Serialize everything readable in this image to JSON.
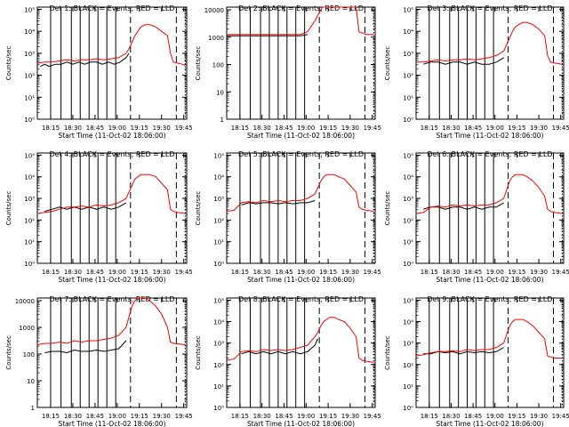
{
  "chart_data": {
    "type": "line",
    "xlabel_template": "Start Time (11-Oct-02 18:06:00)",
    "ylabel": "Counts/sec",
    "x_ticks": [
      "18:15",
      "18:30",
      "18:45",
      "19:00",
      "19:15",
      "19:30",
      "19:45"
    ],
    "x_range_minutes": [
      "18:06",
      "19:47"
    ],
    "scale": "log",
    "legend": "BLACK = Events, RED = LLD",
    "colors": {
      "events": "#000000",
      "lld": "#ff0000",
      "axis": "#000000"
    },
    "panels": [
      {
        "title": "Det 1: BLACK = Events, RED = LLD",
        "y_ticks": [
          "10⁰",
          "10¹",
          "10²",
          "10³",
          "10⁴",
          "10⁵"
        ],
        "ylim_exp": [
          0,
          5.1
        ],
        "series": [
          {
            "name": "Events",
            "color": "#000000",
            "x_minutes": [
              2,
              5,
              8,
              12,
              16,
              20,
              24,
              28,
              32,
              36,
              40,
              44,
              48,
              52,
              56,
              60,
              62
            ],
            "y_log10": [
              2.4,
              2.5,
              2.4,
              2.5,
              2.5,
              2.6,
              2.5,
              2.6,
              2.5,
              2.6,
              2.6,
              2.5,
              2.6,
              2.5,
              2.6,
              2.8,
              3.0
            ]
          },
          {
            "name": "LLD",
            "color": "#ff0000",
            "x_minutes": [
              0,
              5,
              10,
              15,
              20,
              25,
              30,
              35,
              40,
              45,
              50,
              55,
              60,
              62,
              64,
              66,
              68,
              70,
              73,
              76,
              80,
              84,
              88,
              90,
              92,
              95,
              98,
              100
            ],
            "y_log10": [
              2.55,
              2.6,
              2.6,
              2.65,
              2.7,
              2.65,
              2.7,
              2.7,
              2.75,
              2.7,
              2.75,
              2.8,
              3.0,
              3.2,
              3.5,
              3.8,
              4.0,
              4.2,
              4.3,
              4.3,
              4.2,
              4.0,
              3.8,
              3.0,
              2.6,
              2.55,
              2.5,
              2.45
            ]
          }
        ]
      },
      {
        "title": "Det 2: BLACK = Events, RED = LLD",
        "y_ticks": [
          "1",
          "10",
          "100",
          "1000",
          "10000"
        ],
        "ylim_exp": [
          0,
          4.1
        ],
        "series": [
          {
            "name": "Events",
            "color": "#000000",
            "x_minutes": [
              0,
              10,
              20,
              30,
              40,
              50,
              55
            ],
            "y_log10": [
              3.05,
              3.05,
              3.05,
              3.05,
              3.05,
              3.05,
              3.1
            ]
          },
          {
            "name": "LLD",
            "color": "#ff0000",
            "x_minutes": [
              0,
              10,
              20,
              30,
              40,
              50,
              55,
              60,
              65,
              70,
              80,
              88,
              90,
              95,
              100
            ],
            "y_log10": [
              3.1,
              3.1,
              3.1,
              3.1,
              3.1,
              3.1,
              3.2,
              3.6,
              4.1,
              4.1,
              4.1,
              4.1,
              3.2,
              3.1,
              3.1
            ]
          }
        ]
      },
      {
        "title": "Det 3: BLACK = Events, RED = LLD",
        "y_ticks": [
          "10⁰",
          "10¹",
          "10²",
          "10³",
          "10⁴",
          "10⁵"
        ],
        "ylim_exp": [
          0,
          5.1
        ],
        "series": [
          {
            "name": "Events",
            "color": "#000000",
            "x_minutes": [
              5,
              10,
              15,
              20,
              25,
              30,
              35,
              40,
              45,
              50,
              55,
              60
            ],
            "y_log10": [
              2.5,
              2.6,
              2.6,
              2.5,
              2.6,
              2.6,
              2.5,
              2.6,
              2.5,
              2.5,
              2.6,
              2.8
            ]
          },
          {
            "name": "LLD",
            "color": "#ff0000",
            "x_minutes": [
              0,
              5,
              10,
              15,
              20,
              25,
              30,
              35,
              40,
              45,
              50,
              55,
              60,
              62,
              64,
              66,
              68,
              70,
              73,
              76,
              80,
              84,
              88,
              90,
              92,
              95,
              100
            ],
            "y_log10": [
              2.6,
              2.6,
              2.65,
              2.7,
              2.65,
              2.7,
              2.7,
              2.75,
              2.7,
              2.75,
              2.8,
              2.9,
              3.1,
              3.4,
              3.7,
              4.0,
              4.2,
              4.3,
              4.4,
              4.4,
              4.3,
              4.1,
              3.8,
              2.9,
              2.6,
              2.55,
              2.5
            ]
          }
        ]
      },
      {
        "title": "Det 4: BLACK = Events, RED = LLD",
        "y_ticks": [
          "10⁰",
          "10¹",
          "10²",
          "10³",
          "10⁴",
          "10⁵"
        ],
        "ylim_exp": [
          0,
          5.1
        ],
        "series": [
          {
            "name": "Events",
            "color": "#000000",
            "x_minutes": [
              5,
              10,
              15,
              20,
              25,
              30,
              35,
              40,
              45,
              50,
              55,
              60
            ],
            "y_log10": [
              2.4,
              2.5,
              2.6,
              2.5,
              2.6,
              2.5,
              2.6,
              2.5,
              2.6,
              2.5,
              2.6,
              2.8
            ]
          },
          {
            "name": "LLD",
            "color": "#ff0000",
            "x_minutes": [
              0,
              5,
              10,
              15,
              20,
              25,
              30,
              35,
              40,
              45,
              50,
              55,
              60,
              62,
              64,
              66,
              68,
              70,
              73,
              76,
              80,
              84,
              88,
              90,
              92,
              95,
              100
            ],
            "y_log10": [
              2.3,
              2.35,
              2.4,
              2.5,
              2.6,
              2.6,
              2.65,
              2.6,
              2.7,
              2.65,
              2.7,
              2.8,
              3.0,
              3.3,
              3.6,
              3.9,
              4.0,
              4.1,
              4.1,
              4.1,
              4.0,
              3.7,
              3.4,
              2.5,
              2.4,
              2.35,
              2.3
            ]
          }
        ]
      },
      {
        "title": "Det 5: BLACK = Events, RED = LLD",
        "y_ticks": [
          "10⁰",
          "10¹",
          "10²",
          "10³",
          "10⁴",
          "10⁵"
        ],
        "ylim_exp": [
          0,
          5.1
        ],
        "series": [
          {
            "name": "Events",
            "color": "#000000",
            "x_minutes": [
              10,
              15,
              20,
              25,
              30,
              35,
              40,
              45,
              50,
              55,
              60
            ],
            "y_log10": [
              2.7,
              2.8,
              2.75,
              2.8,
              2.8,
              2.75,
              2.8,
              2.75,
              2.8,
              2.8,
              2.9
            ]
          },
          {
            "name": "LLD",
            "color": "#ff0000",
            "x_minutes": [
              0,
              5,
              10,
              15,
              20,
              25,
              30,
              35,
              40,
              45,
              50,
              55,
              60,
              62,
              64,
              66,
              68,
              70,
              73,
              76,
              80,
              84,
              88,
              90,
              92,
              95,
              100
            ],
            "y_log10": [
              2.4,
              2.45,
              2.8,
              2.85,
              2.8,
              2.9,
              2.85,
              2.9,
              2.85,
              2.9,
              2.9,
              3.0,
              3.2,
              3.5,
              3.8,
              4.0,
              4.1,
              4.1,
              4.1,
              4.0,
              3.9,
              3.6,
              3.3,
              2.6,
              2.5,
              2.45,
              2.4
            ]
          }
        ]
      },
      {
        "title": "Det 6: BLACK = Events, RED = LLD",
        "y_ticks": [
          "10⁰",
          "10¹",
          "10²",
          "10³",
          "10⁴",
          "10⁵"
        ],
        "ylim_exp": [
          0,
          5.1
        ],
        "series": [
          {
            "name": "Events",
            "color": "#000000",
            "x_minutes": [
              5,
              10,
              15,
              20,
              25,
              30,
              35,
              40,
              45,
              50,
              55,
              60
            ],
            "y_log10": [
              2.5,
              2.6,
              2.6,
              2.5,
              2.6,
              2.6,
              2.5,
              2.6,
              2.5,
              2.6,
              2.6,
              2.8
            ]
          },
          {
            "name": "LLD",
            "color": "#ff0000",
            "x_minutes": [
              0,
              5,
              10,
              15,
              20,
              25,
              30,
              35,
              40,
              45,
              50,
              55,
              60,
              62,
              64,
              66,
              68,
              70,
              73,
              76,
              80,
              84,
              88,
              90,
              92,
              95,
              100
            ],
            "y_log10": [
              2.3,
              2.35,
              2.6,
              2.65,
              2.6,
              2.7,
              2.65,
              2.7,
              2.65,
              2.7,
              2.7,
              2.8,
              3.0,
              3.4,
              3.8,
              4.0,
              4.1,
              4.1,
              4.1,
              4.0,
              3.8,
              3.5,
              3.1,
              2.5,
              2.4,
              2.35,
              2.3
            ]
          }
        ]
      },
      {
        "title": "Det 7: BLACK = Events, RED = LLD",
        "y_ticks": [
          "1",
          "10",
          "100",
          "1000",
          "10000"
        ],
        "ylim_exp": [
          0,
          4.1
        ],
        "series": [
          {
            "name": "Events",
            "color": "#000000",
            "x_minutes": [
              5,
              10,
              15,
              20,
              25,
              30,
              35,
              40,
              45,
              50,
              55,
              60
            ],
            "y_log10": [
              2.05,
              2.1,
              2.1,
              2.05,
              2.15,
              2.1,
              2.1,
              2.15,
              2.1,
              2.15,
              2.2,
              2.5
            ]
          },
          {
            "name": "LLD",
            "color": "#ff0000",
            "x_minutes": [
              0,
              5,
              10,
              15,
              20,
              25,
              30,
              35,
              40,
              45,
              50,
              55,
              60,
              62,
              64,
              66,
              68,
              70,
              73,
              76,
              80,
              84,
              88,
              90,
              92,
              95,
              100
            ],
            "y_log10": [
              2.35,
              2.4,
              2.4,
              2.45,
              2.4,
              2.5,
              2.45,
              2.5,
              2.5,
              2.55,
              2.6,
              2.7,
              3.0,
              3.4,
              3.8,
              4.0,
              4.1,
              4.1,
              4.1,
              4.0,
              3.8,
              3.5,
              3.0,
              2.45,
              2.4,
              2.38,
              2.35
            ]
          }
        ]
      },
      {
        "title": "Det 8: BLACK = Events, RED = LLD",
        "y_ticks": [
          "10⁰",
          "10¹",
          "10²",
          "10³",
          "10⁴",
          "10⁵"
        ],
        "ylim_exp": [
          0,
          5.1
        ],
        "series": [
          {
            "name": "Events",
            "color": "#000000",
            "x_minutes": [
              10,
              15,
              20,
              25,
              30,
              35,
              40,
              45,
              50,
              55,
              60,
              62
            ],
            "y_log10": [
              2.5,
              2.6,
              2.5,
              2.6,
              2.5,
              2.6,
              2.5,
              2.6,
              2.5,
              2.6,
              2.9,
              3.2
            ]
          },
          {
            "name": "LLD",
            "color": "#ff0000",
            "x_minutes": [
              0,
              5,
              10,
              15,
              20,
              25,
              30,
              35,
              40,
              45,
              50,
              55,
              60,
              62,
              64,
              66,
              68,
              70,
              73,
              76,
              80,
              84,
              88,
              90,
              92,
              95,
              100
            ],
            "y_log10": [
              2.2,
              2.25,
              2.6,
              2.65,
              2.6,
              2.7,
              2.65,
              2.7,
              2.65,
              2.7,
              2.8,
              2.9,
              3.3,
              3.5,
              3.8,
              4.0,
              4.1,
              4.2,
              4.2,
              4.1,
              4.0,
              3.7,
              3.3,
              2.3,
              2.2,
              2.15,
              2.1
            ]
          }
        ]
      },
      {
        "title": "Det 9: BLACK = Events, RED = LLD",
        "y_ticks": [
          "10⁰",
          "10¹",
          "10²",
          "10³",
          "10⁴",
          "10⁵"
        ],
        "ylim_exp": [
          0,
          5.1
        ],
        "series": [
          {
            "name": "Events",
            "color": "#000000",
            "x_minutes": [
              5,
              10,
              15,
              20,
              25,
              30,
              35,
              40,
              45,
              50,
              55,
              60
            ],
            "y_log10": [
              2.5,
              2.5,
              2.6,
              2.55,
              2.6,
              2.5,
              2.6,
              2.55,
              2.6,
              2.55,
              2.6,
              2.8
            ]
          },
          {
            "name": "LLD",
            "color": "#ff0000",
            "x_minutes": [
              0,
              5,
              10,
              15,
              20,
              25,
              30,
              35,
              40,
              45,
              50,
              55,
              60,
              62,
              64,
              66,
              68,
              70,
              73,
              76,
              80,
              84,
              88,
              90,
              92,
              95,
              100
            ],
            "y_log10": [
              2.4,
              2.45,
              2.55,
              2.6,
              2.6,
              2.65,
              2.6,
              2.7,
              2.65,
              2.7,
              2.7,
              2.8,
              3.0,
              3.4,
              3.8,
              4.0,
              4.1,
              4.1,
              4.1,
              4.0,
              3.8,
              3.5,
              3.2,
              2.4,
              2.35,
              2.3,
              2.3
            ]
          }
        ]
      }
    ],
    "marker_lines_minutes": {
      "solid": [
        9,
        16,
        23,
        29,
        35,
        41,
        47,
        53
      ],
      "dashed": [
        63,
        94
      ],
      "dotted": [
        100
      ]
    }
  }
}
